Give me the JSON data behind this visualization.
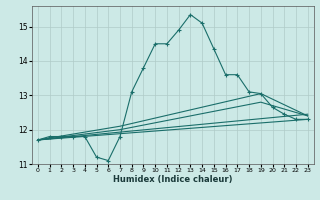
{
  "xlabel": "Humidex (Indice chaleur)",
  "ylabel": "",
  "xlim": [
    -0.5,
    23.5
  ],
  "ylim": [
    11,
    15.6
  ],
  "yticks": [
    11,
    12,
    13,
    14,
    15
  ],
  "xticks": [
    0,
    1,
    2,
    3,
    4,
    5,
    6,
    7,
    8,
    9,
    10,
    11,
    12,
    13,
    14,
    15,
    16,
    17,
    18,
    19,
    20,
    21,
    22,
    23
  ],
  "background_color": "#cce9e6",
  "grid_color": "#b0ccc8",
  "line_color": "#1a6e6a",
  "lines": [
    {
      "x": [
        0,
        1,
        2,
        3,
        4,
        5,
        6,
        7,
        8,
        9,
        10,
        11,
        12,
        13,
        14,
        15,
        16,
        17,
        18,
        19,
        20,
        21,
        22,
        23
      ],
      "y": [
        11.7,
        11.8,
        11.8,
        11.8,
        11.8,
        11.2,
        11.1,
        11.8,
        13.1,
        13.8,
        14.5,
        14.5,
        14.9,
        15.35,
        15.1,
        14.35,
        13.6,
        13.6,
        13.1,
        13.05,
        12.65,
        12.45,
        12.3,
        12.3
      ],
      "has_marker": true
    },
    {
      "x": [
        0,
        23
      ],
      "y": [
        11.7,
        12.3
      ],
      "has_marker": false
    },
    {
      "x": [
        0,
        23
      ],
      "y": [
        11.7,
        12.45
      ],
      "has_marker": false
    },
    {
      "x": [
        0,
        7,
        19,
        23
      ],
      "y": [
        11.7,
        12.0,
        12.8,
        12.4
      ],
      "has_marker": false
    },
    {
      "x": [
        0,
        7,
        19,
        23
      ],
      "y": [
        11.7,
        12.1,
        13.05,
        12.4
      ],
      "has_marker": false
    }
  ]
}
